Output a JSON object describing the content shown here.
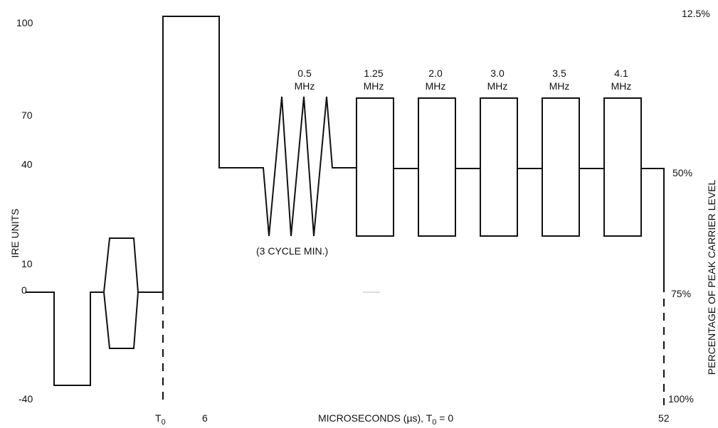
{
  "left_axis": {
    "title": "IRE UNITS",
    "ticks": [
      "100",
      "70",
      "40",
      "10",
      "0",
      "-40"
    ]
  },
  "right_axis": {
    "title": "PERCENTAGE OF PEAK CARRIER LEVEL",
    "ticks": [
      "12.5%",
      "50%",
      "75%",
      "100%"
    ]
  },
  "x_axis": {
    "t0_main": "T",
    "t0_sub": "0",
    "tick_6": "6",
    "tick_52": "52",
    "caption": "MICROSECONDS (µs),  T",
    "caption_sub": "0",
    "caption_tail": " = 0"
  },
  "annotations": {
    "cycle_min": "(3 CYCLE MIN.)"
  },
  "multiburst": [
    {
      "freq": "0.5",
      "unit": "MHz"
    },
    {
      "freq": "1.25",
      "unit": "MHz"
    },
    {
      "freq": "2.0",
      "unit": "MHz"
    },
    {
      "freq": "3.0",
      "unit": "MHz"
    },
    {
      "freq": "3.5",
      "unit": "MHz"
    },
    {
      "freq": "4.1",
      "unit": "MHz"
    }
  ]
}
